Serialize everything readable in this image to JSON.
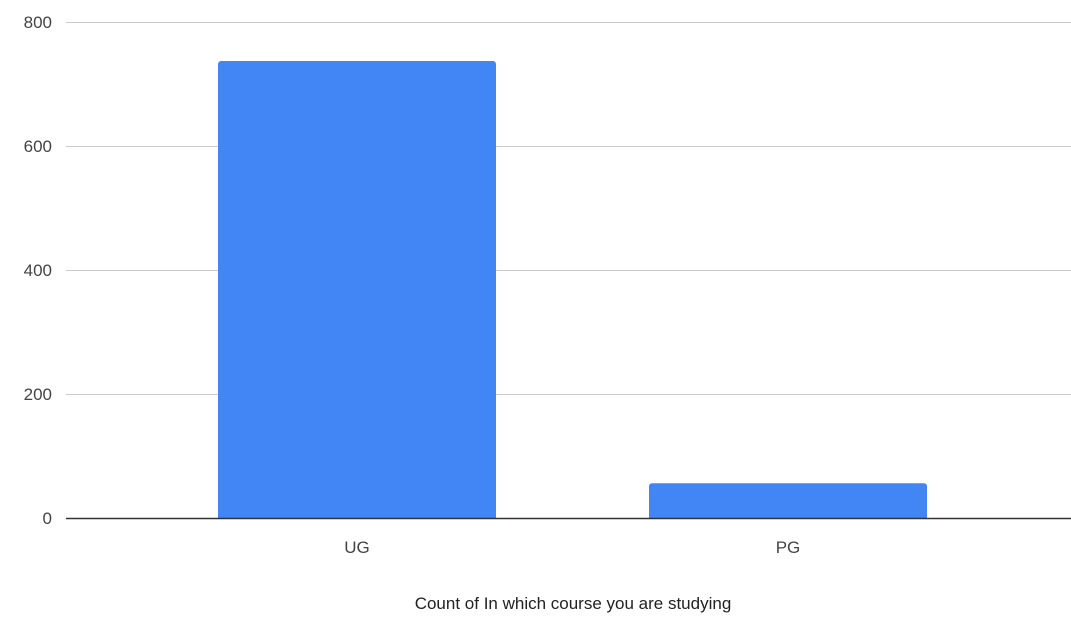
{
  "chart_data": {
    "type": "bar",
    "categories": [
      "UG",
      "PG"
    ],
    "values": [
      737,
      56
    ],
    "title": "",
    "xlabel": "Count of In which course you are studying",
    "ylabel": "",
    "ylim": [
      0,
      800
    ],
    "yticks": [
      0,
      200,
      400,
      600,
      800
    ],
    "grid": true,
    "legend": "none",
    "bar_color": "#4285f4",
    "grid_color": "#cccccc",
    "axis_color": "#333333"
  }
}
